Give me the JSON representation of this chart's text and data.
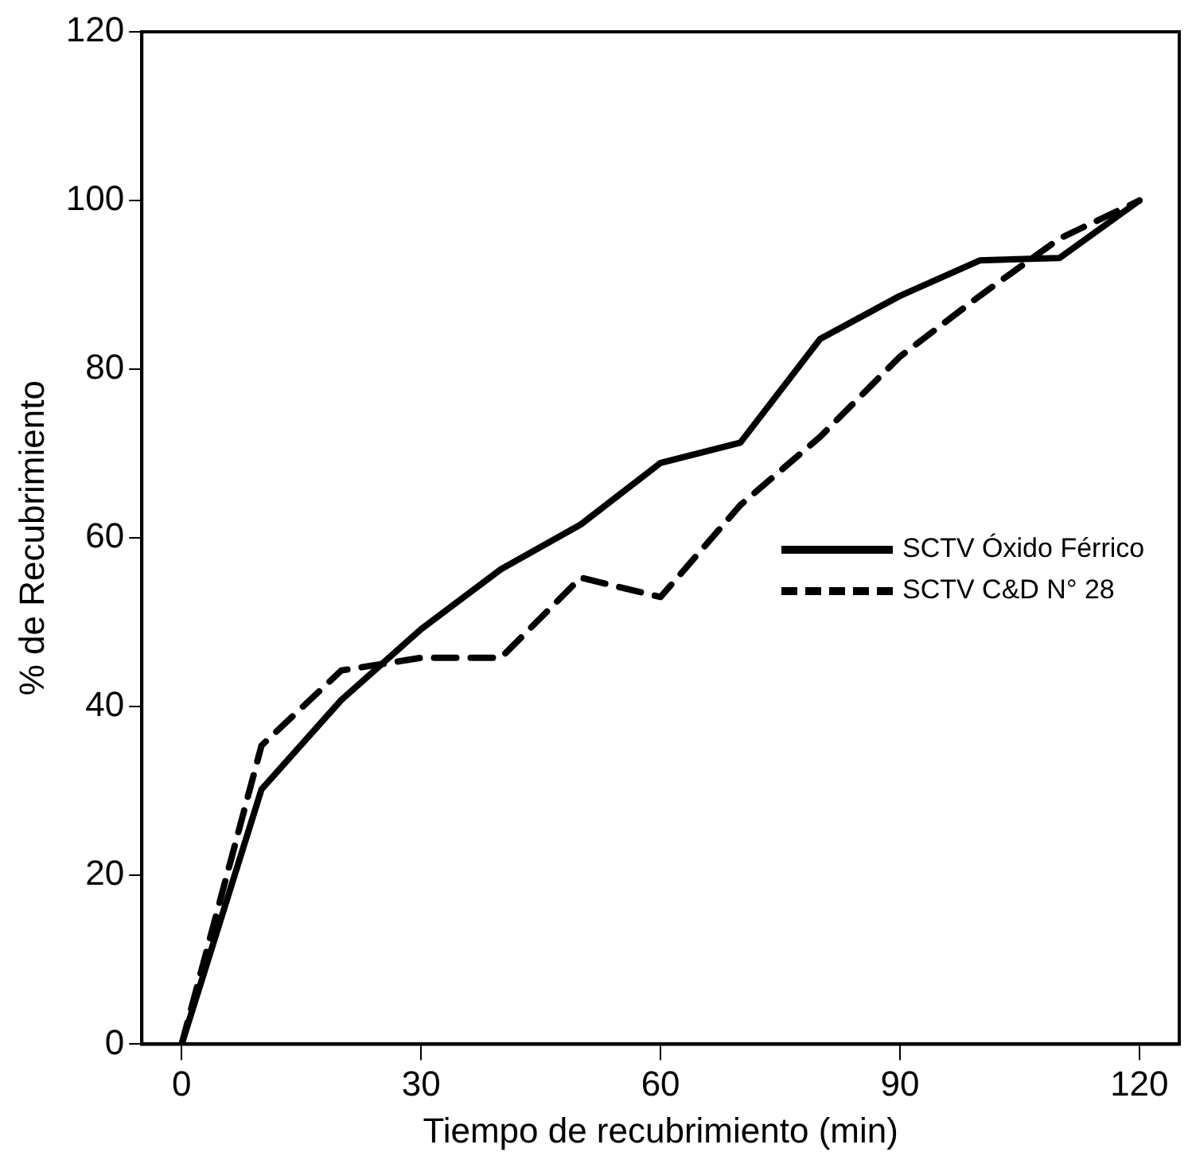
{
  "chart_data": {
    "type": "line",
    "xlabel": "Tiempo de recubrimiento (min)",
    "ylabel": "% de Recubrimiento",
    "x": [
      0,
      10,
      20,
      30,
      40,
      50,
      60,
      70,
      80,
      90,
      100,
      110,
      120
    ],
    "xlim": [
      -5,
      125
    ],
    "xticks": [
      0,
      30,
      60,
      90,
      120
    ],
    "ylim": [
      0,
      120
    ],
    "yticks": [
      0,
      20,
      40,
      60,
      80,
      100,
      120
    ],
    "grid": false,
    "legend": "right",
    "marker": "none",
    "series": [
      {
        "name": "SCTV Óxido Férrico",
        "color": "#000000",
        "line_style": "solid",
        "values": [
          0,
          30.2,
          40.8,
          49.2,
          56.3,
          61.6,
          68.9,
          71.3,
          83.6,
          88.7,
          92.9,
          93.2,
          100
        ]
      },
      {
        "name": "SCTV C&D N° 28",
        "color": "#000000",
        "line_style": "dashed",
        "values": [
          0,
          35.4,
          44.3,
          45.8,
          45.8,
          55.3,
          53.0,
          63.9,
          72.0,
          81.5,
          88.7,
          95.5,
          100
        ]
      }
    ]
  }
}
